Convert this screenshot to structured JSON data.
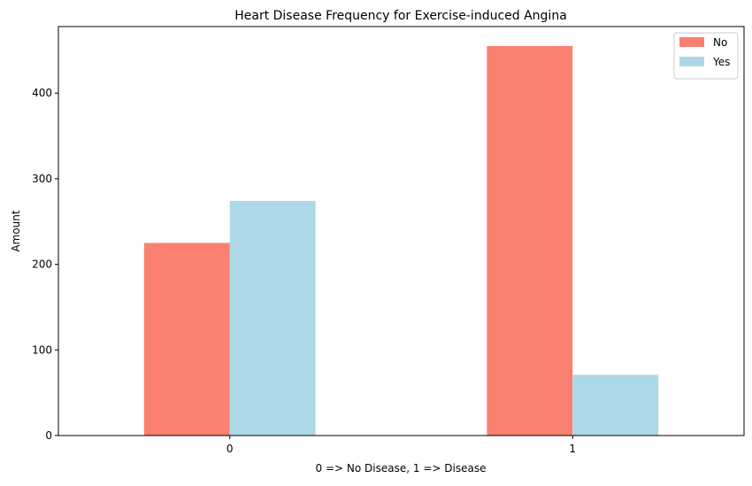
{
  "chart_data": {
    "type": "bar",
    "title": "Heart Disease Frequency for Exercise-induced Angina",
    "xlabel": "0 => No Disease, 1 => Disease",
    "ylabel": "Amount",
    "categories": [
      "0",
      "1"
    ],
    "series": [
      {
        "name": "No",
        "values": [
          225,
          455
        ],
        "color": "#fa8072"
      },
      {
        "name": "Yes",
        "values": [
          274,
          71
        ],
        "color": "#add8e6"
      }
    ],
    "ylim": [
      0,
      477.75
    ],
    "yticks": [
      0,
      100,
      200,
      300,
      400
    ],
    "grid": false,
    "legend_position": "top-right"
  }
}
